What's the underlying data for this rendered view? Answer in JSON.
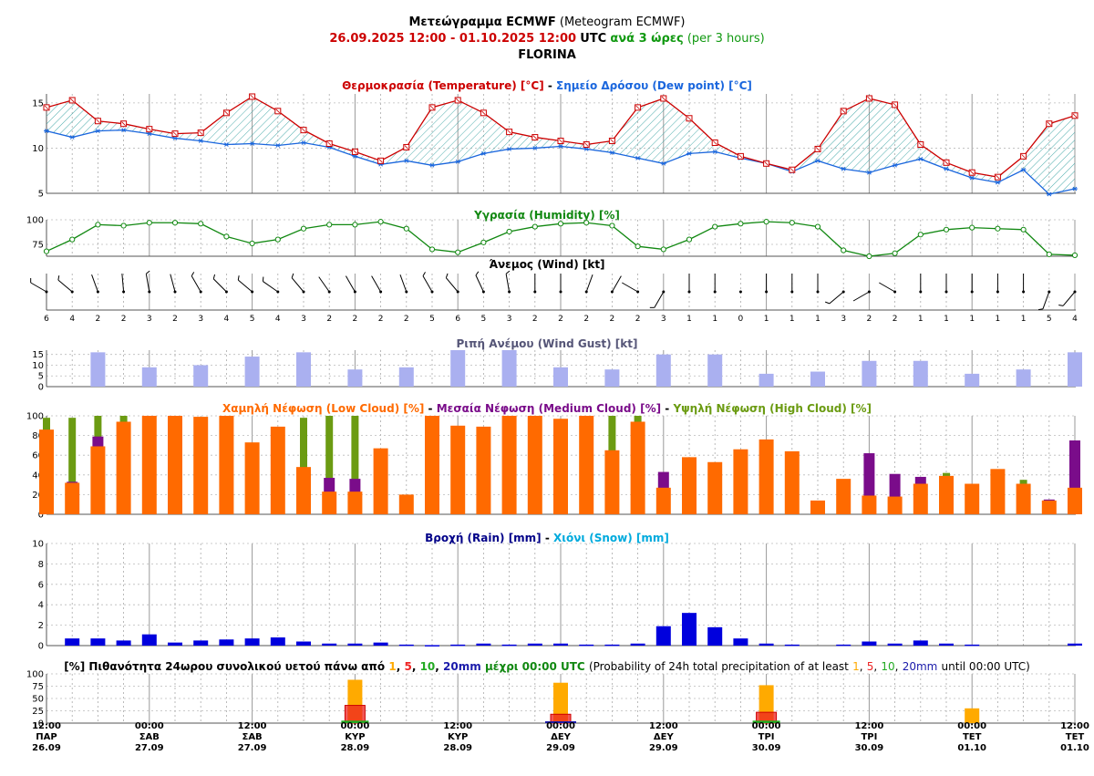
{
  "header": {
    "title_gr": "Μετεώγραμμα ECMWF",
    "title_en": "(Meteogram ECMWF)",
    "range": "26.09.2025 12:00 - 01.10.2025 12:00",
    "utc": "UTC",
    "step_gr": "ανά 3 ώρες",
    "step_en": "(per 3 hours)",
    "location": "FLORINA"
  },
  "colors": {
    "temperature": "#cc0000",
    "dewpoint": "#1a66dd",
    "fill": "#3aa3a3",
    "humidity": "#118811",
    "wind": "#000000",
    "gust": "#aab0f0",
    "low_cloud": "#ff6a00",
    "medium_cloud": "#7a0c8a",
    "high_cloud": "#6b9b12",
    "rain": "#0000dd",
    "snow": "#00aadd",
    "p1": "#ffaa00",
    "p5": "#ee2222",
    "p10": "#22aa22",
    "p20": "#1a1aaa",
    "grid": "#bbbbbb"
  },
  "footer": {
    "ticks": [
      {
        "time": "12:00",
        "day": "ΠΑΡ",
        "date": "26.09"
      },
      {
        "time": "00:00",
        "day": "ΣΑΒ",
        "date": "27.09"
      },
      {
        "time": "12:00",
        "day": "ΣΑΒ",
        "date": "27.09"
      },
      {
        "time": "00:00",
        "day": "ΚΥΡ",
        "date": "28.09"
      },
      {
        "time": "12:00",
        "day": "ΚΥΡ",
        "date": "28.09"
      },
      {
        "time": "00:00",
        "day": "ΔΕΥ",
        "date": "29.09"
      },
      {
        "time": "12:00",
        "day": "ΔΕΥ",
        "date": "29.09"
      },
      {
        "time": "00:00",
        "day": "ΤΡΙ",
        "date": "30.09"
      },
      {
        "time": "12:00",
        "day": "ΤΡΙ",
        "date": "30.09"
      },
      {
        "time": "00:00",
        "day": "ΤΕΤ",
        "date": "01.10"
      },
      {
        "time": "12:00",
        "day": "ΤΕΤ",
        "date": "01.10"
      }
    ]
  },
  "chart_data": [
    {
      "type": "line",
      "title": {
        "gr_1": "Θερμοκρασία (Temperature) [°C]",
        "sep": "-",
        "gr_2": "Σημείο Δρόσου (Dew point) [°C]"
      },
      "ylim": [
        5,
        16
      ],
      "yticks": [
        "5",
        "10",
        "15"
      ],
      "grid": true,
      "series": [
        {
          "name": "Θερμοκρασία (Temperature) [°C]",
          "values": [
            14.5,
            15.3,
            13.0,
            12.7,
            12.1,
            11.6,
            11.7,
            13.9,
            15.7,
            14.1,
            12.0,
            10.5,
            9.6,
            8.6,
            10.1,
            14.5,
            15.3,
            13.9,
            11.8,
            11.2,
            10.8,
            10.4,
            10.8,
            14.5,
            15.5,
            13.3,
            10.6,
            9.1,
            8.3,
            7.6,
            9.9,
            14.1,
            15.5,
            14.8,
            10.4,
            8.4,
            7.3,
            6.8,
            9.1,
            12.7,
            13.6
          ]
        },
        {
          "name": "Σημείο Δρόσου (Dew point) [°C]",
          "values": [
            11.9,
            11.2,
            11.9,
            12.0,
            11.6,
            11.1,
            10.8,
            10.4,
            10.5,
            10.3,
            10.6,
            10.1,
            9.1,
            8.2,
            8.6,
            8.1,
            8.5,
            9.4,
            9.9,
            10.0,
            10.2,
            9.9,
            9.5,
            8.9,
            8.3,
            9.4,
            9.6,
            8.9,
            8.3,
            7.4,
            8.6,
            7.7,
            7.3,
            8.1,
            8.8,
            7.7,
            6.7,
            6.2,
            7.6,
            4.9,
            5.5
          ]
        }
      ]
    },
    {
      "type": "line",
      "title": "Υγρασία (Humidity) [%]",
      "ylim": [
        63,
        100
      ],
      "yticks": [
        "75",
        "100"
      ],
      "grid": true,
      "series": [
        {
          "name": "Υγρασία (Humidity) [%]",
          "values": [
            68,
            80,
            95,
            94,
            97,
            97,
            96,
            83,
            76,
            80,
            91,
            95,
            95,
            98,
            91,
            70,
            67,
            77,
            88,
            93,
            96,
            97,
            94,
            73,
            70,
            80,
            93,
            96,
            98,
            97,
            93,
            69,
            63,
            66,
            85,
            90,
            92,
            91,
            90,
            65,
            64
          ]
        }
      ]
    },
    {
      "type": "wind",
      "title": "Άνεμος (Wind) [kt]",
      "speeds": [
        "6",
        "4",
        "2",
        "2",
        "3",
        "2",
        "3",
        "4",
        "5",
        "4",
        "3",
        "2",
        "2",
        "2",
        "2",
        "5",
        "6",
        "5",
        "3",
        "2",
        "2",
        "2",
        "2",
        "2",
        "3",
        "1",
        "1",
        "0",
        "1",
        "1",
        "1",
        "3",
        "2",
        "2",
        "1",
        "1",
        "1",
        "1",
        "1",
        "5",
        "4"
      ],
      "directions_deg": [
        300,
        310,
        340,
        355,
        350,
        345,
        330,
        315,
        310,
        305,
        320,
        325,
        330,
        330,
        340,
        330,
        320,
        335,
        350,
        360,
        360,
        20,
        30,
        300,
        210,
        0,
        0,
        0,
        0,
        0,
        0,
        230,
        240,
        300,
        0,
        0,
        0,
        0,
        0,
        200,
        220
      ]
    },
    {
      "type": "bar",
      "title": "Ριπή Ανέμου (Wind Gust) [kt]",
      "ylim": [
        0,
        17
      ],
      "yticks": [
        "0",
        "5",
        "10",
        "15"
      ],
      "x_index": [
        2,
        4,
        6,
        8,
        10,
        12,
        14,
        16,
        18,
        20,
        22,
        24,
        26,
        28,
        30,
        32,
        34,
        36,
        38,
        40
      ],
      "values": [
        16,
        9,
        10,
        14,
        16,
        8,
        9,
        17,
        17,
        9,
        8,
        15,
        15,
        6,
        7,
        12,
        12,
        6,
        8,
        16
      ]
    },
    {
      "type": "bar",
      "title": {
        "low": "Χαμηλή Νέφωση (Low Cloud) [%]",
        "sep": "-",
        "medium": "Μεσαία Νέφωση (Medium Cloud) [%]",
        "high": "Υψηλή Νέφωση (High Cloud) [%]"
      },
      "ylim": [
        0,
        100
      ],
      "yticks": [
        "0",
        "20",
        "40",
        "60",
        "80",
        "100"
      ],
      "series": [
        {
          "name": "Χαμηλή Νέφωση (Low Cloud) [%]",
          "values": [
            86,
            32,
            69,
            94,
            100,
            100,
            99,
            100,
            73,
            89,
            48,
            23,
            23,
            67,
            20,
            100,
            90,
            89,
            100,
            100,
            97,
            100,
            65,
            94,
            27,
            58,
            53,
            66,
            76,
            64,
            14,
            36,
            19,
            18,
            31,
            39,
            31,
            46,
            31,
            14,
            27
          ]
        },
        {
          "name": "Μεσαία Νέφωση (Medium Cloud) [%]",
          "values": [
            0,
            33,
            79,
            0,
            0,
            0,
            0,
            0,
            0,
            0,
            0,
            37,
            36,
            0,
            0,
            0,
            0,
            0,
            0,
            0,
            0,
            0,
            0,
            0,
            43,
            0,
            0,
            0,
            0,
            0,
            0,
            0,
            62,
            41,
            38,
            0,
            0,
            0,
            0,
            15,
            75
          ]
        },
        {
          "name": "Υψηλή Νέφωση (High Cloud) [%]",
          "values": [
            98,
            98,
            100,
            100,
            100,
            0,
            0,
            0,
            0,
            0,
            98,
            100,
            100,
            0,
            0,
            0,
            0,
            0,
            0,
            0,
            0,
            100,
            100,
            100,
            0,
            0,
            0,
            0,
            0,
            0,
            0,
            0,
            0,
            0,
            0,
            42,
            0,
            0,
            35,
            0,
            0
          ]
        }
      ]
    },
    {
      "type": "bar",
      "title": {
        "rain": "Βροχή (Rain) [mm]",
        "sep": "-",
        "snow": "Χιόνι (Snow) [mm]"
      },
      "ylim": [
        0,
        10
      ],
      "yticks": [
        "0",
        "2",
        "4",
        "6",
        "8",
        "10"
      ],
      "series": [
        {
          "name": "Βροχή (Rain) [mm]",
          "values": [
            0,
            0.7,
            0.7,
            0.5,
            1.1,
            0.3,
            0.5,
            0.6,
            0.7,
            0.8,
            0.4,
            0.2,
            0.2,
            0.3,
            0.1,
            0.05,
            0.1,
            0.2,
            0.1,
            0.2,
            0.2,
            0.1,
            0.1,
            0.2,
            1.9,
            3.2,
            1.8,
            0.7,
            0.2,
            0.1,
            0,
            0.1,
            0.4,
            0.2,
            0.5,
            0.2,
            0.1,
            0,
            0,
            0,
            0.2
          ]
        },
        {
          "name": "Χιόνι (Snow) [mm]",
          "values": [
            0,
            0,
            0,
            0,
            0,
            0,
            0,
            0,
            0,
            0,
            0,
            0,
            0,
            0,
            0,
            0,
            0,
            0,
            0,
            0,
            0,
            0,
            0,
            0,
            0,
            0,
            0,
            0,
            0,
            0,
            0,
            0,
            0,
            0,
            0,
            0,
            0,
            0,
            0,
            0,
            0
          ]
        }
      ]
    },
    {
      "type": "bar",
      "title": {
        "prefix_gr": "[%] Πιθανότητα 24ωρου συνολικού υετού πάνω από",
        "t1": "1",
        "t5": "5",
        "t10": "10",
        "t20": "20mm",
        "until_gr": "μέχρι 00:00 UTC",
        "en_prefix": "(Probability of 24h total precipitation of at least",
        "en_until": "until 00:00 UTC)"
      },
      "ylim": [
        0,
        100
      ],
      "yticks": [
        "0",
        "25",
        "50",
        "75",
        "100"
      ],
      "x_index": [
        12,
        20,
        28,
        36
      ],
      "series": [
        {
          "name": "1",
          "values": [
            88,
            82,
            77,
            30
          ]
        },
        {
          "name": "5",
          "values": [
            36,
            18,
            22,
            0
          ]
        },
        {
          "name": "10",
          "values": [
            5,
            3,
            5,
            0
          ]
        },
        {
          "name": "20mm",
          "values": [
            0,
            1,
            0,
            0
          ]
        }
      ]
    }
  ]
}
